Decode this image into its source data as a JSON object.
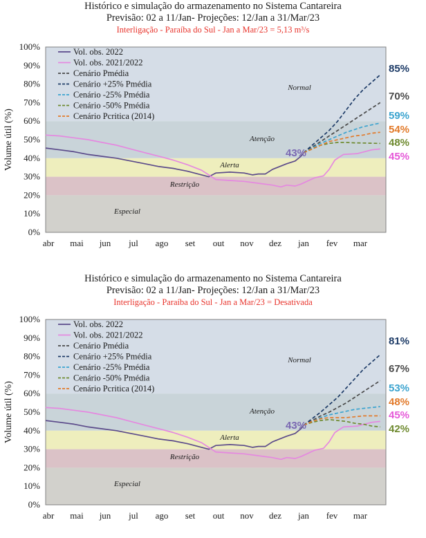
{
  "chart_data": [
    {
      "type": "line",
      "title": "Histórico e simulação do armazenamento no Sistema Cantareira",
      "subtitle": "Previsão: 02 a 11/Jan- Projeções: 12/Jan a 31/Mar/23",
      "note": "Interligação - Paraíba do Sul - Jan a Mar/23 = 5,13 m³/s",
      "ylabel": "Volume útil (%)",
      "ylim": [
        0,
        100
      ],
      "yticks": [
        "0%",
        "10%",
        "20%",
        "30%",
        "40%",
        "50%",
        "60%",
        "70%",
        "80%",
        "90%",
        "100%"
      ],
      "months": [
        "abr",
        "mai",
        "jun",
        "jul",
        "ago",
        "set",
        "out",
        "nov",
        "dez",
        "jan",
        "fev",
        "mar"
      ],
      "zones": [
        {
          "label": "Normal",
          "from": 60,
          "to": 100,
          "color": "#d5dde7"
        },
        {
          "label": "Atenção",
          "from": 40,
          "to": 60,
          "color": "#c9d4d9"
        },
        {
          "label": "Alerta",
          "from": 30,
          "to": 40,
          "color": "#eeeebd"
        },
        {
          "label": "Restrição",
          "from": 20,
          "to": 30,
          "color": "#dbc2c7"
        },
        {
          "label": "Especial",
          "from": 0,
          "to": 20,
          "color": "#d2d1cc"
        }
      ],
      "start_label": "43%",
      "series": [
        {
          "name": "Vol. obs. 2022",
          "color": "#5b4a8a",
          "dash": "solid",
          "x": [
            0,
            0.5,
            1,
            1.5,
            2,
            2.5,
            3,
            3.5,
            4,
            4.5,
            5,
            5.5,
            5.75,
            6,
            6.5,
            7,
            7.3,
            7.5,
            7.75,
            8,
            8.5,
            8.8,
            9,
            9.1
          ],
          "y": [
            45.5,
            44.5,
            43.5,
            42,
            41,
            40,
            38.5,
            37,
            35.5,
            34.5,
            33,
            31,
            30,
            32,
            32.5,
            32,
            31,
            31.5,
            31.5,
            34,
            37,
            38.5,
            41,
            43
          ]
        },
        {
          "name": "Vol. obs. 2021/2022",
          "color": "#e588e0",
          "dash": "solid",
          "x": [
            0,
            0.5,
            1,
            1.5,
            2,
            2.5,
            3,
            3.5,
            4,
            4.5,
            5,
            5.5,
            5.75,
            6,
            6.5,
            7,
            7.5,
            8,
            8.3,
            8.5,
            8.8,
            9,
            9.5,
            9.8,
            10,
            10.2,
            10.5,
            11,
            11.5,
            11.8
          ],
          "y": [
            52.5,
            52,
            51,
            50,
            48.5,
            47,
            45,
            43,
            41,
            39,
            36.5,
            33.5,
            31,
            28.5,
            28,
            27.5,
            26.5,
            25.5,
            24.5,
            25.5,
            25,
            26,
            29.5,
            30.5,
            34,
            39,
            42,
            42.5,
            44.5,
            45
          ]
        },
        {
          "name": "Cenário Pmédia",
          "color": "#4a4a4a",
          "dash": "dashed",
          "x": [
            9.1,
            9.4,
            9.7,
            10,
            10.3,
            10.6,
            10.9,
            11.2,
            11.5,
            11.8
          ],
          "y": [
            43,
            46,
            49,
            52,
            55,
            58,
            61,
            64,
            67,
            70
          ]
        },
        {
          "name": "Cenário +25% Pmédia",
          "color": "#1c3a66",
          "dash": "dashed",
          "x": [
            9.1,
            9.4,
            9.7,
            10,
            10.3,
            10.6,
            10.9,
            11.2,
            11.5,
            11.8
          ],
          "y": [
            43,
            47,
            51,
            55,
            60,
            66,
            72,
            77,
            81,
            85
          ]
        },
        {
          "name": "Cenário -25% Pmédia",
          "color": "#3aa3cf",
          "dash": "dashed",
          "x": [
            9.1,
            9.4,
            9.7,
            10,
            10.3,
            10.6,
            10.9,
            11.2,
            11.5,
            11.8
          ],
          "y": [
            43,
            45.5,
            48,
            50,
            52,
            54,
            55.5,
            57,
            58,
            59
          ]
        },
        {
          "name": "Cenário -50% Pmédia",
          "color": "#6e8a2f",
          "dash": "dashed",
          "x": [
            9.1,
            9.4,
            9.7,
            10,
            10.3,
            10.6,
            10.9,
            11.2,
            11.5,
            11.8
          ],
          "y": [
            43,
            45,
            47,
            48,
            48.5,
            48.5,
            48.3,
            48.2,
            48.1,
            48
          ]
        },
        {
          "name": "Cenário Pcritica (2014)",
          "color": "#e27a2a",
          "dash": "dashed",
          "x": [
            9.1,
            9.4,
            9.7,
            10,
            10.3,
            10.6,
            10.9,
            11.2,
            11.5,
            11.8
          ],
          "y": [
            43,
            45,
            47,
            49,
            50,
            51,
            52,
            52.5,
            53.5,
            54
          ]
        }
      ],
      "end_labels": [
        {
          "text": "85%",
          "color": "#1c3a66"
        },
        {
          "text": "70%",
          "color": "#4a4a4a"
        },
        {
          "text": "59%",
          "color": "#3aa3cf"
        },
        {
          "text": "54%",
          "color": "#e27a2a"
        },
        {
          "text": "48%",
          "color": "#6e8a2f"
        },
        {
          "text": "45%",
          "color": "#e558d8"
        }
      ]
    },
    {
      "type": "line",
      "title": "Histórico e simulação do armazenamento no Sistema Cantareira",
      "subtitle": "Previsão: 02 a 11/Jan- Projeções: 12/Jan a 31/Mar/23",
      "note": "Interligação - Paraíba do Sul - Jan a Mar/23 = Desativada",
      "ylabel": "Volume útil (%)",
      "ylim": [
        0,
        100
      ],
      "yticks": [
        "0%",
        "10%",
        "20%",
        "30%",
        "40%",
        "50%",
        "60%",
        "70%",
        "80%",
        "90%",
        "100%"
      ],
      "months": [
        "abr",
        "mai",
        "jun",
        "jul",
        "ago",
        "set",
        "out",
        "nov",
        "dez",
        "jan",
        "fev",
        "mar"
      ],
      "zones": [
        {
          "label": "Normal",
          "from": 60,
          "to": 100,
          "color": "#d5dde7"
        },
        {
          "label": "Atenção",
          "from": 40,
          "to": 60,
          "color": "#c9d4d9"
        },
        {
          "label": "Alerta",
          "from": 30,
          "to": 40,
          "color": "#eeeebd"
        },
        {
          "label": "Restrição",
          "from": 20,
          "to": 30,
          "color": "#dbc2c7"
        },
        {
          "label": "Especial",
          "from": 0,
          "to": 20,
          "color": "#d2d1cc"
        }
      ],
      "start_label": "43%",
      "series": [
        {
          "name": "Vol. obs. 2022",
          "color": "#5b4a8a",
          "dash": "solid",
          "x": [
            0,
            0.5,
            1,
            1.5,
            2,
            2.5,
            3,
            3.5,
            4,
            4.5,
            5,
            5.5,
            5.75,
            6,
            6.5,
            7,
            7.3,
            7.5,
            7.75,
            8,
            8.5,
            8.8,
            9,
            9.1
          ],
          "y": [
            45.5,
            44.5,
            43.5,
            42,
            41,
            40,
            38.5,
            37,
            35.5,
            34.5,
            33,
            31,
            30,
            32,
            32.5,
            32,
            31,
            31.5,
            31.5,
            34,
            37,
            38.5,
            41,
            43
          ]
        },
        {
          "name": "Vol. obs. 2021/2022",
          "color": "#e588e0",
          "dash": "solid",
          "x": [
            0,
            0.5,
            1,
            1.5,
            2,
            2.5,
            3,
            3.5,
            4,
            4.5,
            5,
            5.5,
            5.75,
            6,
            6.5,
            7,
            7.5,
            8,
            8.3,
            8.5,
            8.8,
            9,
            9.5,
            9.8,
            10,
            10.2,
            10.5,
            11,
            11.5,
            11.8
          ],
          "y": [
            52.5,
            52,
            51,
            50,
            48.5,
            47,
            45,
            43,
            41,
            39,
            36.5,
            33.5,
            31,
            28.5,
            28,
            27.5,
            26.5,
            25.5,
            24.5,
            25.5,
            25,
            26,
            29.5,
            30.5,
            34,
            39,
            42,
            42.5,
            44.5,
            45
          ]
        },
        {
          "name": "Cenário Pmédia",
          "color": "#4a4a4a",
          "dash": "dashed",
          "x": [
            9.1,
            9.4,
            9.7,
            10,
            10.3,
            10.6,
            10.9,
            11.2,
            11.5,
            11.8
          ],
          "y": [
            43,
            45.5,
            48,
            50,
            52.5,
            55,
            58,
            61,
            64,
            67
          ]
        },
        {
          "name": "Cenário +25% Pmédia",
          "color": "#1c3a66",
          "dash": "dashed",
          "x": [
            9.1,
            9.4,
            9.7,
            10,
            10.3,
            10.6,
            10.9,
            11.2,
            11.5,
            11.8
          ],
          "y": [
            43,
            46.5,
            50,
            54,
            58,
            63,
            68,
            73,
            77,
            81
          ]
        },
        {
          "name": "Cenário -25% Pmédia",
          "color": "#3aa3cf",
          "dash": "dashed",
          "x": [
            9.1,
            9.4,
            9.7,
            10,
            10.3,
            10.6,
            10.9,
            11.2,
            11.5,
            11.8
          ],
          "y": [
            43,
            45,
            47,
            48.5,
            49.5,
            50.5,
            51.5,
            52,
            52.5,
            53
          ]
        },
        {
          "name": "Cenário -50% Pmédia",
          "color": "#6e8a2f",
          "dash": "dashed",
          "x": [
            9.1,
            9.4,
            9.7,
            10,
            10.3,
            10.6,
            10.9,
            11.2,
            11.5,
            11.8
          ],
          "y": [
            43,
            44.5,
            45.5,
            46,
            45.5,
            45,
            44,
            43.5,
            42.5,
            42
          ]
        },
        {
          "name": "Cenário Pcritica (2014)",
          "color": "#e27a2a",
          "dash": "dashed",
          "x": [
            9.1,
            9.4,
            9.7,
            10,
            10.3,
            10.6,
            10.9,
            11.2,
            11.5,
            11.8
          ],
          "y": [
            43,
            45,
            46.5,
            47,
            47,
            47,
            47.5,
            48,
            48,
            48
          ]
        }
      ],
      "end_labels": [
        {
          "text": "81%",
          "color": "#1c3a66"
        },
        {
          "text": "67%",
          "color": "#4a4a4a"
        },
        {
          "text": "53%",
          "color": "#3aa3cf"
        },
        {
          "text": "48%",
          "color": "#e27a2a"
        },
        {
          "text": "45%",
          "color": "#e558d8"
        },
        {
          "text": "42%",
          "color": "#6e8a2f"
        }
      ]
    }
  ]
}
